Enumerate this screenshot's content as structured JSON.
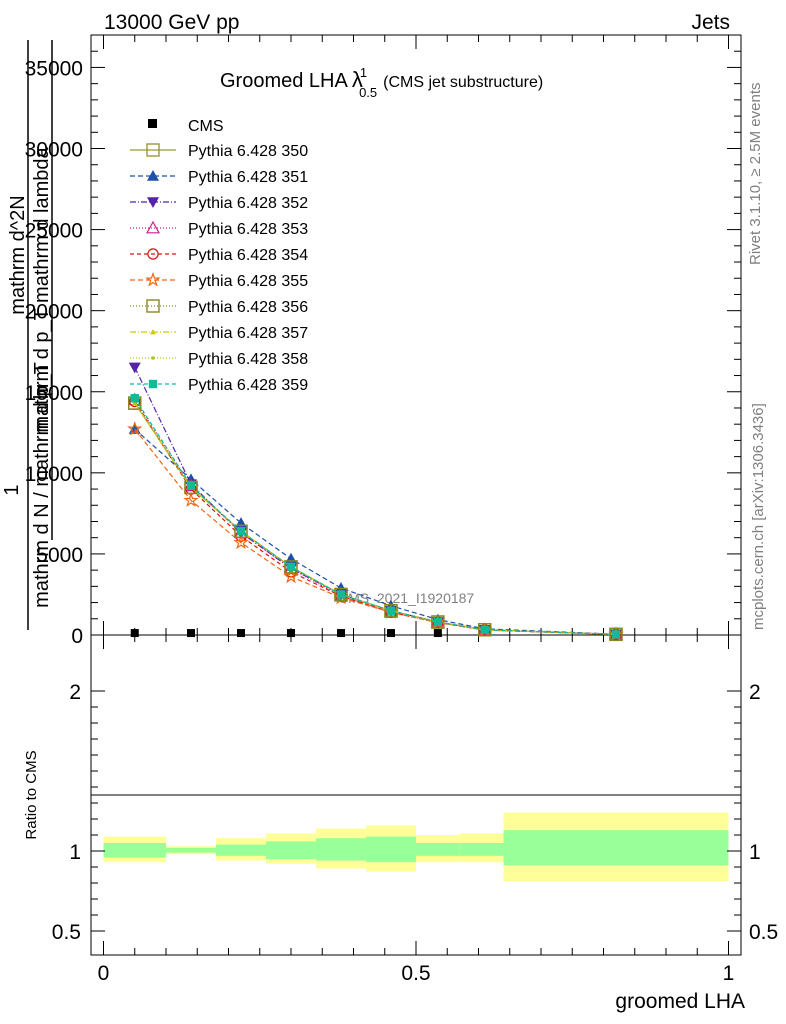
{
  "header": {
    "left": "13000 GeV pp",
    "right": "Jets"
  },
  "side_labels": {
    "top": "Rivet 3.1.10, ≥ 2.5M events",
    "bottom": "mcplots.cern.ch [arXiv:1306.3436]"
  },
  "watermark": "CMS_2021_I1920187",
  "chart_data": {
    "type": "line",
    "title": "Groomed LHA",
    "title_lambda": "λ",
    "title_sup": "1",
    "title_sub": "0.5",
    "title_suffix": "(CMS jet substructure)",
    "ylabel_main": {
      "prefix": "1",
      "num1": "mathrm d^{2}N",
      "den1": "mathrm d N / mathrm d p_{T}",
      "num2": "mathrm d p_{T} mathrm d lambda",
      "one": "1"
    },
    "ylabel_lines": [
      "mathrm d^2N",
      "mathrm d p_T mathrm d lambda",
      "mathrm d N / mathrm d p_T",
      "1"
    ],
    "ylabel_ratio": "Ratio to CMS",
    "xlabel": "groomed LHA",
    "xlim": [
      -0.02,
      1.02
    ],
    "ylim_main": [
      0,
      37000
    ],
    "ylim_ratio": [
      0.35,
      2.35
    ],
    "x_ticks": [
      "0",
      "0.5",
      "1"
    ],
    "y_ticks_main": [
      "0",
      "5000",
      "10000",
      "15000",
      "20000",
      "25000",
      "30000",
      "35000"
    ],
    "y_ticks_ratio": [
      "0.5",
      "1",
      "2"
    ],
    "bins": [
      {
        "x": 0.05,
        "lo": 0.0,
        "hi": 0.1
      },
      {
        "x": 0.14,
        "lo": 0.1,
        "hi": 0.18
      },
      {
        "x": 0.22,
        "lo": 0.18,
        "hi": 0.26
      },
      {
        "x": 0.3,
        "lo": 0.26,
        "hi": 0.34
      },
      {
        "x": 0.38,
        "lo": 0.34,
        "hi": 0.42
      },
      {
        "x": 0.46,
        "lo": 0.42,
        "hi": 0.5
      },
      {
        "x": 0.535,
        "lo": 0.5,
        "hi": 0.57
      },
      {
        "x": 0.61,
        "lo": 0.57,
        "hi": 0.64
      },
      {
        "x": 0.82,
        "lo": 0.64,
        "hi": 1.0
      }
    ],
    "cms": {
      "name": "CMS",
      "x": [
        0.05,
        0.14,
        0.22,
        0.3,
        0.38,
        0.46,
        0.535
      ],
      "y": [
        120,
        120,
        120,
        120,
        120,
        120,
        120
      ]
    },
    "series": [
      {
        "name": "Pythia 6.428 350",
        "color": "#999933",
        "dash": "",
        "marker": "square-open",
        "y": [
          14300,
          9100,
          6400,
          4200,
          2500,
          1500,
          800,
          320,
          40
        ]
      },
      {
        "name": "Pythia 6.428 351",
        "color": "#1f4fa8",
        "dash": "5,3",
        "marker": "triangle-up",
        "y": [
          12700,
          9600,
          6900,
          4700,
          2900,
          1800,
          950,
          380,
          50
        ]
      },
      {
        "name": "Pythia 6.428 352",
        "color": "#5522aa",
        "dash": "6,2,1,2",
        "marker": "triangle-down",
        "y": [
          16500,
          9300,
          6300,
          4100,
          2500,
          1500,
          800,
          320,
          40
        ]
      },
      {
        "name": "Pythia 6.428 353",
        "color": "#cc2288",
        "dash": "1,2",
        "marker": "triangle-up-open",
        "y": [
          14500,
          9200,
          6300,
          4100,
          2400,
          1400,
          780,
          310,
          40
        ]
      },
      {
        "name": "Pythia 6.428 354",
        "color": "#dd1111",
        "dash": "4,3",
        "marker": "circle-open",
        "y": [
          14400,
          9000,
          6100,
          3900,
          2400,
          1400,
          780,
          310,
          40
        ]
      },
      {
        "name": "Pythia 6.428 355",
        "color": "#ee6611",
        "dash": "5,3",
        "marker": "star-open",
        "y": [
          12700,
          8300,
          5700,
          3600,
          2300,
          1400,
          760,
          300,
          40
        ]
      },
      {
        "name": "Pythia 6.428 356",
        "color": "#888822",
        "dash": "1,2",
        "marker": "square-open",
        "y": [
          14300,
          9100,
          6400,
          4200,
          2500,
          1500,
          800,
          320,
          40
        ]
      },
      {
        "name": "Pythia 6.428 357",
        "color": "#cccc11",
        "dash": "6,2,1,2",
        "marker": "tri-small",
        "y": [
          14300,
          9100,
          6400,
          4200,
          2500,
          1500,
          800,
          320,
          40
        ]
      },
      {
        "name": "Pythia 6.428 358",
        "color": "#aacc11",
        "dash": "1,2",
        "marker": "dot",
        "y": [
          14300,
          9100,
          6400,
          4200,
          2500,
          1500,
          800,
          320,
          40
        ]
      },
      {
        "name": "Pythia 6.428 359",
        "color": "#11bb99",
        "dash": "4,3",
        "marker": "square-filled",
        "y": [
          14600,
          9200,
          6400,
          4200,
          2500,
          1500,
          800,
          320,
          40
        ]
      }
    ],
    "ratio_bands": [
      {
        "lo": 0.0,
        "hi": 0.1,
        "g": [
          0.96,
          1.05
        ],
        "y": [
          0.93,
          1.09
        ]
      },
      {
        "lo": 0.1,
        "hi": 0.18,
        "g": [
          0.99,
          1.02
        ],
        "y": [
          0.98,
          1.03
        ]
      },
      {
        "lo": 0.18,
        "hi": 0.26,
        "g": [
          0.97,
          1.04
        ],
        "y": [
          0.94,
          1.08
        ]
      },
      {
        "lo": 0.26,
        "hi": 0.34,
        "g": [
          0.95,
          1.06
        ],
        "y": [
          0.92,
          1.11
        ]
      },
      {
        "lo": 0.34,
        "hi": 0.42,
        "g": [
          0.94,
          1.08
        ],
        "y": [
          0.89,
          1.14
        ]
      },
      {
        "lo": 0.42,
        "hi": 0.5,
        "g": [
          0.93,
          1.09
        ],
        "y": [
          0.87,
          1.16
        ]
      },
      {
        "lo": 0.5,
        "hi": 0.57,
        "g": [
          0.97,
          1.05
        ],
        "y": [
          0.93,
          1.1
        ]
      },
      {
        "lo": 0.57,
        "hi": 0.64,
        "g": [
          0.97,
          1.05
        ],
        "y": [
          0.93,
          1.11
        ]
      },
      {
        "lo": 0.64,
        "hi": 1.0,
        "g": [
          0.91,
          1.13
        ],
        "y": [
          0.81,
          1.24
        ]
      }
    ],
    "colors": {
      "band_green": "#99ff99",
      "band_yellow": "#ffff99",
      "axis": "#000000"
    },
    "legend_position": "top-left",
    "grid": false
  }
}
